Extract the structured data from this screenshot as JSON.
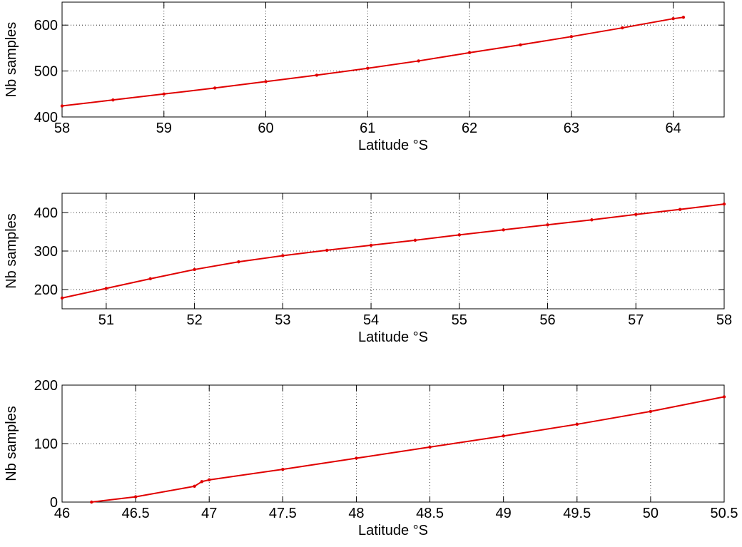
{
  "chart_data": [
    {
      "type": "line",
      "xlabel": "Latitude °S",
      "ylabel": "Nb samples",
      "color": "#e00000",
      "grid": true,
      "x": [
        58,
        58.5,
        59,
        59.5,
        60,
        60.5,
        61,
        61.5,
        62,
        62.5,
        63,
        63.5,
        64,
        64.1
      ],
      "values": [
        424,
        437,
        450,
        463,
        477,
        491,
        506,
        522,
        540,
        557,
        575,
        594,
        614,
        617
      ],
      "xlim": [
        58,
        64.5
      ],
      "ylim": [
        400,
        650
      ],
      "xticks": [
        58,
        59,
        60,
        61,
        62,
        63,
        64
      ],
      "yticks": [
        400,
        500,
        600
      ]
    },
    {
      "type": "line",
      "xlabel": "Latitude °S",
      "ylabel": "Nb samples",
      "color": "#e00000",
      "grid": true,
      "x": [
        50.5,
        51,
        51.5,
        52,
        52.5,
        53,
        53.5,
        54,
        54.5,
        55,
        55.5,
        56,
        56.5,
        57,
        57.5,
        58
      ],
      "values": [
        178,
        203,
        228,
        252,
        272,
        288,
        302,
        315,
        328,
        342,
        355,
        368,
        381,
        395,
        408,
        422
      ],
      "xlim": [
        50.5,
        58
      ],
      "ylim": [
        150,
        450
      ],
      "xticks": [
        51,
        52,
        53,
        54,
        55,
        56,
        57,
        58
      ],
      "yticks": [
        200,
        300,
        400
      ]
    },
    {
      "type": "line",
      "xlabel": "Latitude °S",
      "ylabel": "Nb samples",
      "color": "#e00000",
      "grid": true,
      "x": [
        46.2,
        46.5,
        46.9,
        46.95,
        47,
        47.5,
        48,
        48.5,
        49,
        49.5,
        50,
        50.5
      ],
      "values": [
        0,
        9,
        27,
        35,
        38,
        56,
        75,
        94,
        113,
        133,
        155,
        180
      ],
      "xlim": [
        46,
        50.5
      ],
      "ylim": [
        0,
        200
      ],
      "xticks": [
        46,
        46.5,
        47,
        47.5,
        48,
        48.5,
        49,
        49.5,
        50,
        50.5
      ],
      "yticks": [
        0,
        100,
        200
      ]
    }
  ]
}
